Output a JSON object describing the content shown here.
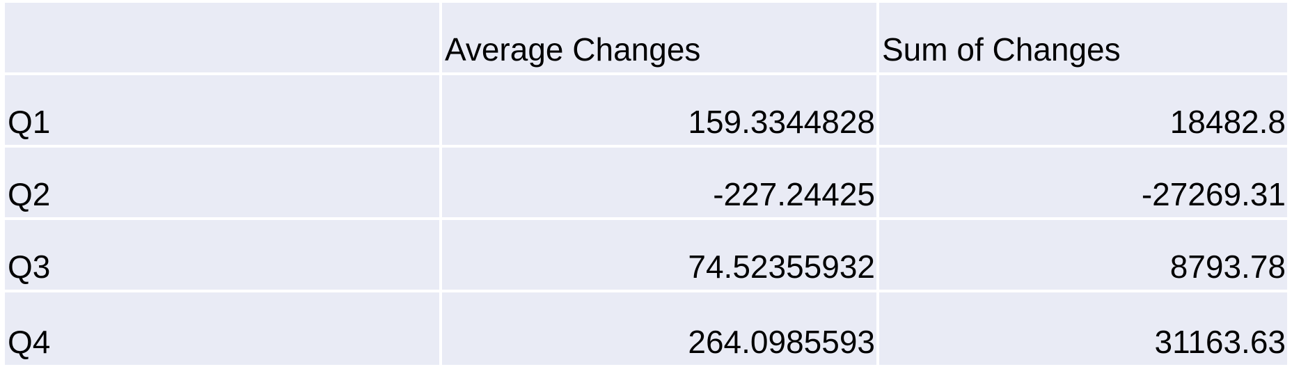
{
  "table": {
    "columns": [
      "",
      "Average Changes",
      "Sum of Changes"
    ],
    "rows": [
      {
        "label": "Q1",
        "avg": "159.3344828",
        "sum": "18482.8"
      },
      {
        "label": "Q2",
        "avg": "-227.24425",
        "sum": "-27269.31"
      },
      {
        "label": "Q3",
        "avg": "74.52355932",
        "sum": "8793.78"
      },
      {
        "label": "Q4",
        "avg": "264.0985593",
        "sum": "31163.63"
      }
    ]
  },
  "colors": {
    "cell_background": "#e9ebf5",
    "grid_lines": "#ffffff",
    "text": "#000000"
  }
}
